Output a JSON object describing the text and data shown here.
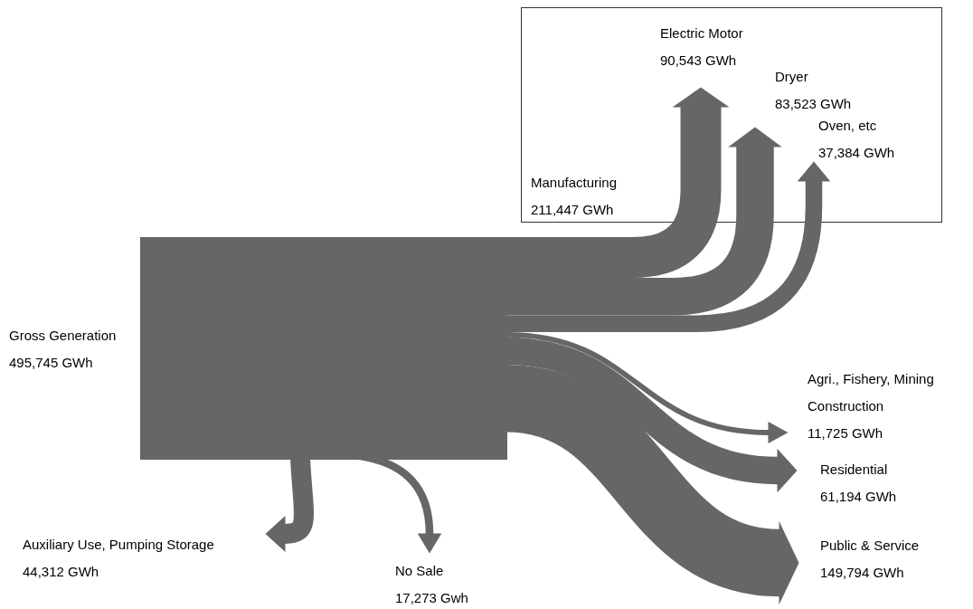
{
  "chart_data": {
    "type": "other",
    "color": "#666666",
    "categories": [
      "Gross Generation",
      "Manufacturing",
      "Electric Motor",
      "Dryer",
      "Oven, etc",
      "Agri., Fishery, Mining Construction",
      "Residential",
      "Public & Service",
      "Auxiliary Use, Pumping Storage",
      "No Sale"
    ],
    "values": [
      495745,
      211447,
      90543,
      83523,
      37384,
      11725,
      61194,
      149794,
      44312,
      17273
    ],
    "value_labels": [
      "495,745 GWh",
      "211,447 GWh",
      "90,543 GWh",
      "83,523 GWh",
      "37,384 GWh",
      "11,725 GWh",
      "61,194 GWh",
      "149,794 GWh",
      "44,312 GWh",
      "17,273 Gwh"
    ]
  }
}
